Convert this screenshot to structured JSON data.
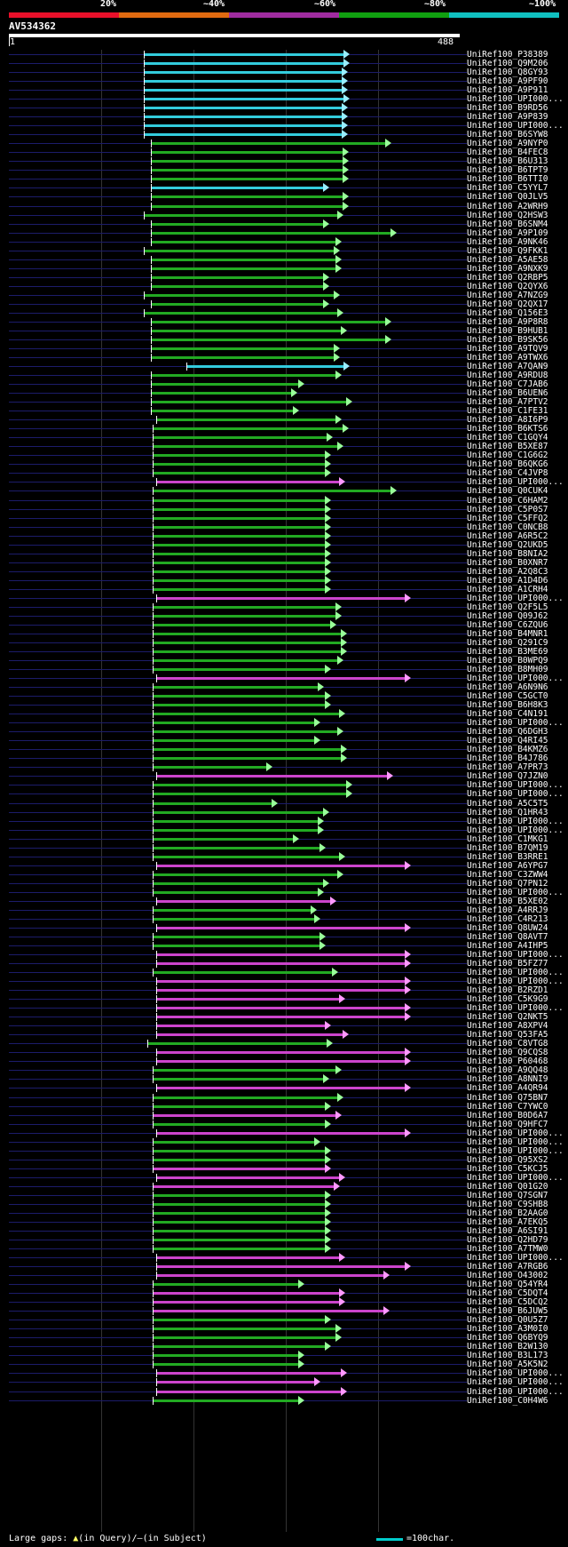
{
  "identity_scale": {
    "labels": [
      "20%",
      "~40%",
      "~60%",
      "~80%",
      "~100%"
    ],
    "colors": [
      "#e8102a",
      "#e06a10",
      "#a02ca0",
      "#10a010",
      "#10c0c0"
    ]
  },
  "query": {
    "title": "AV534362",
    "scale_start": "1",
    "scale_end": "488",
    "length": 488
  },
  "hits": [
    {
      "label": "UniRef100_P38389",
      "start": 162,
      "end": 387,
      "color": "cyan"
    },
    {
      "label": "UniRef100_Q9M206",
      "start": 162,
      "end": 387,
      "color": "cyan"
    },
    {
      "label": "UniRef100_Q8GY93",
      "start": 162,
      "end": 385,
      "color": "cyan"
    },
    {
      "label": "UniRef100_A9PF90",
      "start": 162,
      "end": 385,
      "color": "cyan"
    },
    {
      "label": "UniRef100_A9P911",
      "start": 162,
      "end": 385,
      "color": "cyan"
    },
    {
      "label": "UniRef100_UPI000...",
      "start": 162,
      "end": 387,
      "color": "cyan"
    },
    {
      "label": "UniRef100_B9RD56",
      "start": 162,
      "end": 385,
      "color": "cyan"
    },
    {
      "label": "UniRef100_A9P839",
      "start": 162,
      "end": 385,
      "color": "cyan"
    },
    {
      "label": "UniRef100_UPI000...",
      "start": 162,
      "end": 385,
      "color": "cyan"
    },
    {
      "label": "UniRef100_B6SYW8",
      "start": 162,
      "end": 385,
      "color": "cyan"
    },
    {
      "label": "UniRef100_A9NYP0",
      "start": 170,
      "end": 434,
      "color": "green"
    },
    {
      "label": "UniRef100_B4FEC8",
      "start": 170,
      "end": 386,
      "color": "green"
    },
    {
      "label": "UniRef100_B6U313",
      "start": 170,
      "end": 386,
      "color": "green"
    },
    {
      "label": "UniRef100_B6TPT9",
      "start": 170,
      "end": 386,
      "color": "green"
    },
    {
      "label": "UniRef100_B6TTI0",
      "start": 170,
      "end": 386,
      "color": "green"
    },
    {
      "label": "UniRef100_C5YYL7",
      "start": 170,
      "end": 364,
      "color": "cyan"
    },
    {
      "label": "UniRef100_Q0JLV5",
      "start": 170,
      "end": 386,
      "color": "green"
    },
    {
      "label": "UniRef100_A2WRH9",
      "start": 170,
      "end": 386,
      "color": "green"
    },
    {
      "label": "UniRef100_Q2HSW3",
      "start": 162,
      "end": 380,
      "color": "green"
    },
    {
      "label": "UniRef100_B6SNM4",
      "start": 170,
      "end": 364,
      "color": "green"
    },
    {
      "label": "UniRef100_A9P109",
      "start": 170,
      "end": 440,
      "color": "green"
    },
    {
      "label": "UniRef100_A9NK46",
      "start": 170,
      "end": 378,
      "color": "green"
    },
    {
      "label": "UniRef100_Q9FKK1",
      "start": 162,
      "end": 376,
      "color": "green"
    },
    {
      "label": "UniRef100_A5AE58",
      "start": 170,
      "end": 378,
      "color": "green"
    },
    {
      "label": "UniRef100_A9NXK9",
      "start": 170,
      "end": 378,
      "color": "green"
    },
    {
      "label": "UniRef100_Q2RBP5",
      "start": 170,
      "end": 364,
      "color": "green"
    },
    {
      "label": "UniRef100_Q2QYX6",
      "start": 170,
      "end": 364,
      "color": "green"
    },
    {
      "label": "UniRef100_A7NZG9",
      "start": 162,
      "end": 376,
      "color": "green"
    },
    {
      "label": "UniRef100_Q2QX17",
      "start": 170,
      "end": 364,
      "color": "green"
    },
    {
      "label": "UniRef100_Q156E3",
      "start": 162,
      "end": 380,
      "color": "green"
    },
    {
      "label": "UniRef100_A9P8R8",
      "start": 170,
      "end": 434,
      "color": "green"
    },
    {
      "label": "UniRef100_B9HUB1",
      "start": 170,
      "end": 384,
      "color": "green"
    },
    {
      "label": "UniRef100_B9SK56",
      "start": 170,
      "end": 434,
      "color": "green"
    },
    {
      "label": "UniRef100_A9TQV9",
      "start": 170,
      "end": 376,
      "color": "green"
    },
    {
      "label": "UniRef100_A9TWX6",
      "start": 170,
      "end": 376,
      "color": "green"
    },
    {
      "label": "UniRef100_A7QAN9",
      "start": 210,
      "end": 387,
      "color": "cyan"
    },
    {
      "label": "UniRef100_A9RDU8",
      "start": 170,
      "end": 378,
      "color": "green"
    },
    {
      "label": "UniRef100_C7JAB6",
      "start": 170,
      "end": 336,
      "color": "green"
    },
    {
      "label": "UniRef100_B6UEN6",
      "start": 170,
      "end": 328,
      "color": "green"
    },
    {
      "label": "UniRef100_A7PTV2",
      "start": 170,
      "end": 390,
      "color": "green"
    },
    {
      "label": "UniRef100_C1FE31",
      "start": 170,
      "end": 330,
      "color": "green"
    },
    {
      "label": "UniRef100_A8I6P9",
      "start": 176,
      "end": 378,
      "color": "green"
    },
    {
      "label": "UniRef100_B6KTS6",
      "start": 172,
      "end": 386,
      "color": "green"
    },
    {
      "label": "UniRef100_C1GQY4",
      "start": 172,
      "end": 368,
      "color": "green"
    },
    {
      "label": "UniRef100_B5XE87",
      "start": 172,
      "end": 380,
      "color": "green"
    },
    {
      "label": "UniRef100_C1G6G2",
      "start": 172,
      "end": 366,
      "color": "green"
    },
    {
      "label": "UniRef100_B6QKG6",
      "start": 172,
      "end": 366,
      "color": "green"
    },
    {
      "label": "UniRef100_C4JVP8",
      "start": 172,
      "end": 366,
      "color": "green"
    },
    {
      "label": "UniRef100_UPI000...",
      "start": 176,
      "end": 382,
      "color": "magenta"
    },
    {
      "label": "UniRef100_Q0CUK4",
      "start": 172,
      "end": 440,
      "color": "green"
    },
    {
      "label": "UniRef100_C6HAM2",
      "start": 172,
      "end": 366,
      "color": "green"
    },
    {
      "label": "UniRef100_C5P0S7",
      "start": 172,
      "end": 366,
      "color": "green"
    },
    {
      "label": "UniRef100_C5FFQ2",
      "start": 172,
      "end": 366,
      "color": "green"
    },
    {
      "label": "UniRef100_C0NCB8",
      "start": 172,
      "end": 366,
      "color": "green"
    },
    {
      "label": "UniRef100_A6R5C2",
      "start": 172,
      "end": 366,
      "color": "green"
    },
    {
      "label": "UniRef100_Q2UKD5",
      "start": 172,
      "end": 366,
      "color": "green"
    },
    {
      "label": "UniRef100_B8NIA2",
      "start": 172,
      "end": 366,
      "color": "green"
    },
    {
      "label": "UniRef100_B0XNR7",
      "start": 172,
      "end": 366,
      "color": "green"
    },
    {
      "label": "UniRef100_A2Q8C3",
      "start": 172,
      "end": 366,
      "color": "green"
    },
    {
      "label": "UniRef100_A1D4D6",
      "start": 172,
      "end": 366,
      "color": "green"
    },
    {
      "label": "UniRef100_A1CRH4",
      "start": 172,
      "end": 366,
      "color": "green"
    },
    {
      "label": "UniRef100_UPI000...",
      "start": 176,
      "end": 456,
      "color": "magenta"
    },
    {
      "label": "UniRef100_Q2F5L5",
      "start": 172,
      "end": 378,
      "color": "green"
    },
    {
      "label": "UniRef100_Q09J62",
      "start": 172,
      "end": 378,
      "color": "green"
    },
    {
      "label": "UniRef100_C6ZQU6",
      "start": 172,
      "end": 372,
      "color": "green"
    },
    {
      "label": "UniRef100_B4MNR1",
      "start": 172,
      "end": 384,
      "color": "green"
    },
    {
      "label": "UniRef100_Q291C9",
      "start": 172,
      "end": 384,
      "color": "green"
    },
    {
      "label": "UniRef100_B3ME69",
      "start": 172,
      "end": 384,
      "color": "green"
    },
    {
      "label": "UniRef100_B0WPQ9",
      "start": 172,
      "end": 380,
      "color": "green"
    },
    {
      "label": "UniRef100_B8MH09",
      "start": 172,
      "end": 366,
      "color": "green"
    },
    {
      "label": "UniRef100_UPI000...",
      "start": 176,
      "end": 456,
      "color": "magenta"
    },
    {
      "label": "UniRef100_A6N9N6",
      "start": 172,
      "end": 358,
      "color": "green"
    },
    {
      "label": "UniRef100_C5GCT0",
      "start": 172,
      "end": 366,
      "color": "green"
    },
    {
      "label": "UniRef100_B6H8K3",
      "start": 172,
      "end": 366,
      "color": "green"
    },
    {
      "label": "UniRef100_C4N191",
      "start": 172,
      "end": 382,
      "color": "green"
    },
    {
      "label": "UniRef100_UPI000...",
      "start": 172,
      "end": 354,
      "color": "green"
    },
    {
      "label": "UniRef100_Q6DGH3",
      "start": 172,
      "end": 380,
      "color": "green"
    },
    {
      "label": "UniRef100_Q4RI45",
      "start": 172,
      "end": 354,
      "color": "green"
    },
    {
      "label": "UniRef100_B4KMZ6",
      "start": 172,
      "end": 384,
      "color": "green"
    },
    {
      "label": "UniRef100_B4J786",
      "start": 172,
      "end": 384,
      "color": "green"
    },
    {
      "label": "UniRef100_A7PR73",
      "start": 172,
      "end": 300,
      "color": "green"
    },
    {
      "label": "UniRef100_Q7JZN0",
      "start": 176,
      "end": 436,
      "color": "magenta"
    },
    {
      "label": "UniRef100_UPI000...",
      "start": 172,
      "end": 390,
      "color": "green"
    },
    {
      "label": "UniRef100_UPI000...",
      "start": 172,
      "end": 390,
      "color": "green"
    },
    {
      "label": "UniRef100_A5C5T5",
      "start": 172,
      "end": 306,
      "color": "green"
    },
    {
      "label": "UniRef100_Q1HR43",
      "start": 172,
      "end": 364,
      "color": "green"
    },
    {
      "label": "UniRef100_UPI000...",
      "start": 172,
      "end": 358,
      "color": "green"
    },
    {
      "label": "UniRef100_UPI000...",
      "start": 172,
      "end": 358,
      "color": "green"
    },
    {
      "label": "UniRef100_C1MKG1",
      "start": 172,
      "end": 330,
      "color": "green"
    },
    {
      "label": "UniRef100_B7QM19",
      "start": 172,
      "end": 360,
      "color": "green"
    },
    {
      "label": "UniRef100_B3RRE1",
      "start": 172,
      "end": 382,
      "color": "green"
    },
    {
      "label": "UniRef100_A6YPG7",
      "start": 176,
      "end": 456,
      "color": "magenta"
    },
    {
      "label": "UniRef100_C3ZWW4",
      "start": 172,
      "end": 380,
      "color": "green"
    },
    {
      "label": "UniRef100_Q7PN12",
      "start": 172,
      "end": 364,
      "color": "green"
    },
    {
      "label": "UniRef100_UPI000...",
      "start": 172,
      "end": 358,
      "color": "green"
    },
    {
      "label": "UniRef100_B5XE02",
      "start": 176,
      "end": 372,
      "color": "magenta"
    },
    {
      "label": "UniRef100_A4RRJ9",
      "start": 172,
      "end": 350,
      "color": "green"
    },
    {
      "label": "UniRef100_C4R213",
      "start": 172,
      "end": 354,
      "color": "green"
    },
    {
      "label": "UniRef100_Q8UW24",
      "start": 176,
      "end": 456,
      "color": "magenta"
    },
    {
      "label": "UniRef100_Q8AVT7",
      "start": 172,
      "end": 360,
      "color": "green"
    },
    {
      "label": "UniRef100_A4IHP5",
      "start": 172,
      "end": 360,
      "color": "green"
    },
    {
      "label": "UniRef100_UPI000...",
      "start": 176,
      "end": 456,
      "color": "magenta"
    },
    {
      "label": "UniRef100_B5FZ77",
      "start": 176,
      "end": 456,
      "color": "magenta"
    },
    {
      "label": "UniRef100_UPI000...",
      "start": 172,
      "end": 374,
      "color": "green"
    },
    {
      "label": "UniRef100_UPI000...",
      "start": 176,
      "end": 456,
      "color": "magenta"
    },
    {
      "label": "UniRef100_B2RZD1",
      "start": 176,
      "end": 456,
      "color": "magenta"
    },
    {
      "label": "UniRef100_C5K9G9",
      "start": 176,
      "end": 382,
      "color": "magenta"
    },
    {
      "label": "UniRef100_UPI000...",
      "start": 176,
      "end": 456,
      "color": "magenta"
    },
    {
      "label": "UniRef100_Q2NKT5",
      "start": 176,
      "end": 456,
      "color": "magenta"
    },
    {
      "label": "UniRef100_A8XPV4",
      "start": 176,
      "end": 366,
      "color": "magenta"
    },
    {
      "label": "UniRef100_Q53FA5",
      "start": 176,
      "end": 386,
      "color": "magenta"
    },
    {
      "label": "UniRef100_C8VTG8",
      "start": 166,
      "end": 368,
      "color": "green"
    },
    {
      "label": "UniRef100_Q9CQS8",
      "start": 176,
      "end": 456,
      "color": "magenta"
    },
    {
      "label": "UniRef100_P60468",
      "start": 176,
      "end": 456,
      "color": "magenta"
    },
    {
      "label": "UniRef100_A9QQ48",
      "start": 172,
      "end": 378,
      "color": "green"
    },
    {
      "label": "UniRef100_A8NNI9",
      "start": 172,
      "end": 364,
      "color": "green"
    },
    {
      "label": "UniRef100_A4QR94",
      "start": 176,
      "end": 456,
      "color": "magenta"
    },
    {
      "label": "UniRef100_Q75BN7",
      "start": 172,
      "end": 380,
      "color": "green"
    },
    {
      "label": "UniRef100_C7YWC0",
      "start": 172,
      "end": 366,
      "color": "green"
    },
    {
      "label": "UniRef100_B0D6A7",
      "start": 172,
      "end": 378,
      "color": "magenta"
    },
    {
      "label": "UniRef100_Q9HFC7",
      "start": 172,
      "end": 366,
      "color": "green"
    },
    {
      "label": "UniRef100_UPI000...",
      "start": 176,
      "end": 456,
      "color": "magenta"
    },
    {
      "label": "UniRef100_UPI000...",
      "start": 172,
      "end": 354,
      "color": "green"
    },
    {
      "label": "UniRef100_UPI000...",
      "start": 172,
      "end": 366,
      "color": "green"
    },
    {
      "label": "UniRef100_Q95XS2",
      "start": 172,
      "end": 366,
      "color": "green"
    },
    {
      "label": "UniRef100_C5KCJ5",
      "start": 172,
      "end": 366,
      "color": "magenta"
    },
    {
      "label": "UniRef100_UPI000...",
      "start": 176,
      "end": 382,
      "color": "magenta"
    },
    {
      "label": "UniRef100_Q01G20",
      "start": 172,
      "end": 376,
      "color": "magenta"
    },
    {
      "label": "UniRef100_Q7SGN7",
      "start": 172,
      "end": 366,
      "color": "green"
    },
    {
      "label": "UniRef100_C9SHB8",
      "start": 172,
      "end": 366,
      "color": "green"
    },
    {
      "label": "UniRef100_B2AAG0",
      "start": 172,
      "end": 366,
      "color": "green"
    },
    {
      "label": "UniRef100_A7EKQ5",
      "start": 172,
      "end": 366,
      "color": "green"
    },
    {
      "label": "UniRef100_A6SI91",
      "start": 172,
      "end": 366,
      "color": "green"
    },
    {
      "label": "UniRef100_Q2HD79",
      "start": 172,
      "end": 366,
      "color": "green"
    },
    {
      "label": "UniRef100_A7TMW0",
      "start": 172,
      "end": 366,
      "color": "green"
    },
    {
      "label": "UniRef100_UPI000...",
      "start": 176,
      "end": 382,
      "color": "magenta"
    },
    {
      "label": "UniRef100_A7RGB6",
      "start": 176,
      "end": 456,
      "color": "magenta"
    },
    {
      "label": "UniRef100_O43002",
      "start": 176,
      "end": 432,
      "color": "magenta"
    },
    {
      "label": "UniRef100_Q54YR4",
      "start": 172,
      "end": 336,
      "color": "green"
    },
    {
      "label": "UniRef100_C5DQT4",
      "start": 172,
      "end": 382,
      "color": "magenta"
    },
    {
      "label": "UniRef100_C5DCQ2",
      "start": 172,
      "end": 382,
      "color": "magenta"
    },
    {
      "label": "UniRef100_B6JUW5",
      "start": 172,
      "end": 432,
      "color": "magenta"
    },
    {
      "label": "UniRef100_Q0U5Z7",
      "start": 172,
      "end": 366,
      "color": "green"
    },
    {
      "label": "UniRef100_A3M0I0",
      "start": 172,
      "end": 378,
      "color": "green"
    },
    {
      "label": "UniRef100_Q6BYQ9",
      "start": 172,
      "end": 378,
      "color": "green"
    },
    {
      "label": "UniRef100_B2W130",
      "start": 172,
      "end": 366,
      "color": "green"
    },
    {
      "label": "UniRef100_B3L173",
      "start": 172,
      "end": 336,
      "color": "green"
    },
    {
      "label": "UniRef100_A5K5N2",
      "start": 172,
      "end": 336,
      "color": "green"
    },
    {
      "label": "UniRef100_UPI000...",
      "start": 176,
      "end": 384,
      "color": "magenta"
    },
    {
      "label": "UniRef100_UPI000...",
      "start": 176,
      "end": 354,
      "color": "magenta"
    },
    {
      "label": "UniRef100_UPI000...",
      "start": 176,
      "end": 384,
      "color": "magenta"
    },
    {
      "label": "UniRef100_C0H4W6",
      "start": 172,
      "end": 336,
      "color": "green"
    }
  ],
  "legend": {
    "left_text": "Large gaps:",
    "query_gap": "(in Query)/",
    "subject_gap": "(in Subject)",
    "scale_text": "=100char."
  }
}
